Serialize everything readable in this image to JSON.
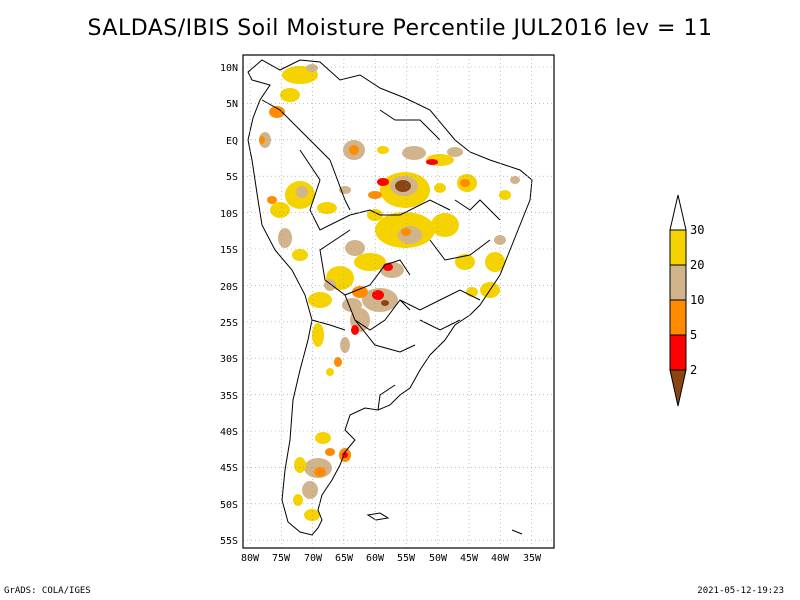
{
  "title": "SALDAS/IBIS Soil Moisture Percentile JUL2016 lev = 11",
  "map": {
    "region": "South America",
    "lon_range": [
      -80,
      -32
    ],
    "lat_range": [
      -56,
      12
    ],
    "lat_ticks": [
      "10N",
      "5N",
      "EQ",
      "5S",
      "10S",
      "15S",
      "20S",
      "25S",
      "30S",
      "35S",
      "40S",
      "45S",
      "50S",
      "55S"
    ],
    "lon_ticks": [
      "80W",
      "75W",
      "70W",
      "65W",
      "60W",
      "55W",
      "50W",
      "45W",
      "40W",
      "35W"
    ],
    "grid": "dotted"
  },
  "legend": {
    "levels": [
      "30",
      "20",
      "10",
      "5",
      "2"
    ],
    "colors": {
      "above_30": "#ffffff",
      "20_30": "#f5d300",
      "10_20": "#d2b48c",
      "5_10": "#ff8c00",
      "2_5": "#ff0000",
      "below_2": "#8b4513"
    }
  },
  "footer": {
    "left": "GrADS: COLA/IGES",
    "right": "2021-05-12-19:23"
  }
}
